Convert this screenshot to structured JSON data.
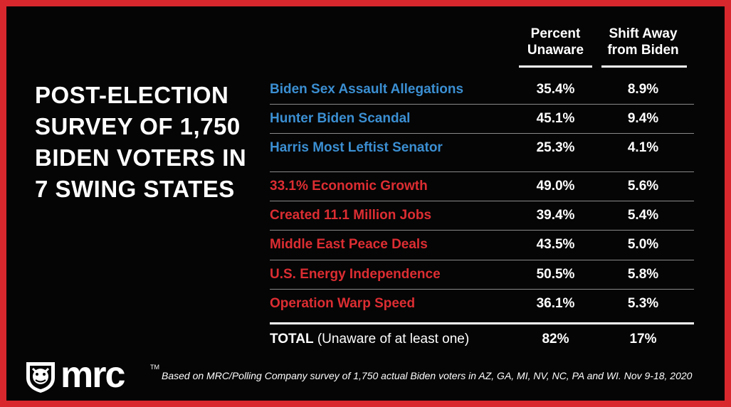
{
  "colors": {
    "border": "#d8282d",
    "background": "#050505",
    "blue": "#3b8fd2",
    "red": "#dc2d32",
    "white": "#ffffff"
  },
  "title": "POST-ELECTION SURVEY OF 1,750 BIDEN VOTERS IN 7 SWING STATES",
  "columns": {
    "percent_unaware": [
      "Percent",
      "Unaware"
    ],
    "shift_away": [
      "Shift Away",
      "from Biden"
    ]
  },
  "chart_data": {
    "type": "table",
    "title": "POST-ELECTION SURVEY OF 1,750 BIDEN VOTERS IN 7 SWING STATES",
    "columns": [
      "Percent Unaware",
      "Shift Away from Biden"
    ],
    "rows": [
      {
        "label": "Biden Sex Assault Allegations",
        "group": "blue",
        "percent_unaware": "35.4%",
        "shift_away": "8.9%"
      },
      {
        "label": "Hunter Biden Scandal",
        "group": "blue",
        "percent_unaware": "45.1%",
        "shift_away": "9.4%"
      },
      {
        "label": "Harris Most Leftist Senator",
        "group": "blue",
        "percent_unaware": "25.3%",
        "shift_away": "4.1%"
      },
      {
        "label": "33.1% Economic Growth",
        "group": "red",
        "percent_unaware": "49.0%",
        "shift_away": "5.6%"
      },
      {
        "label": "Created 11.1 Million Jobs",
        "group": "red",
        "percent_unaware": "39.4%",
        "shift_away": "5.4%"
      },
      {
        "label": "Middle East Peace Deals",
        "group": "red",
        "percent_unaware": "43.5%",
        "shift_away": "5.0%"
      },
      {
        "label": "U.S. Energy Independence",
        "group": "red",
        "percent_unaware": "50.5%",
        "shift_away": "5.8%"
      },
      {
        "label": "Operation Warp Speed",
        "group": "red",
        "percent_unaware": "36.1%",
        "shift_away": "5.3%"
      }
    ],
    "total": {
      "label_bold": "TOTAL",
      "label_rest": " (Unaware of at least one)",
      "percent_unaware": "82%",
      "shift_away": "17%"
    }
  },
  "logo": {
    "text": "mrc",
    "tm": "TM"
  },
  "footnote": "Based on MRC/Polling Company survey of 1,750 actual Biden voters in AZ, GA, MI, NV, NC, PA and WI. Nov 9-18, 2020"
}
